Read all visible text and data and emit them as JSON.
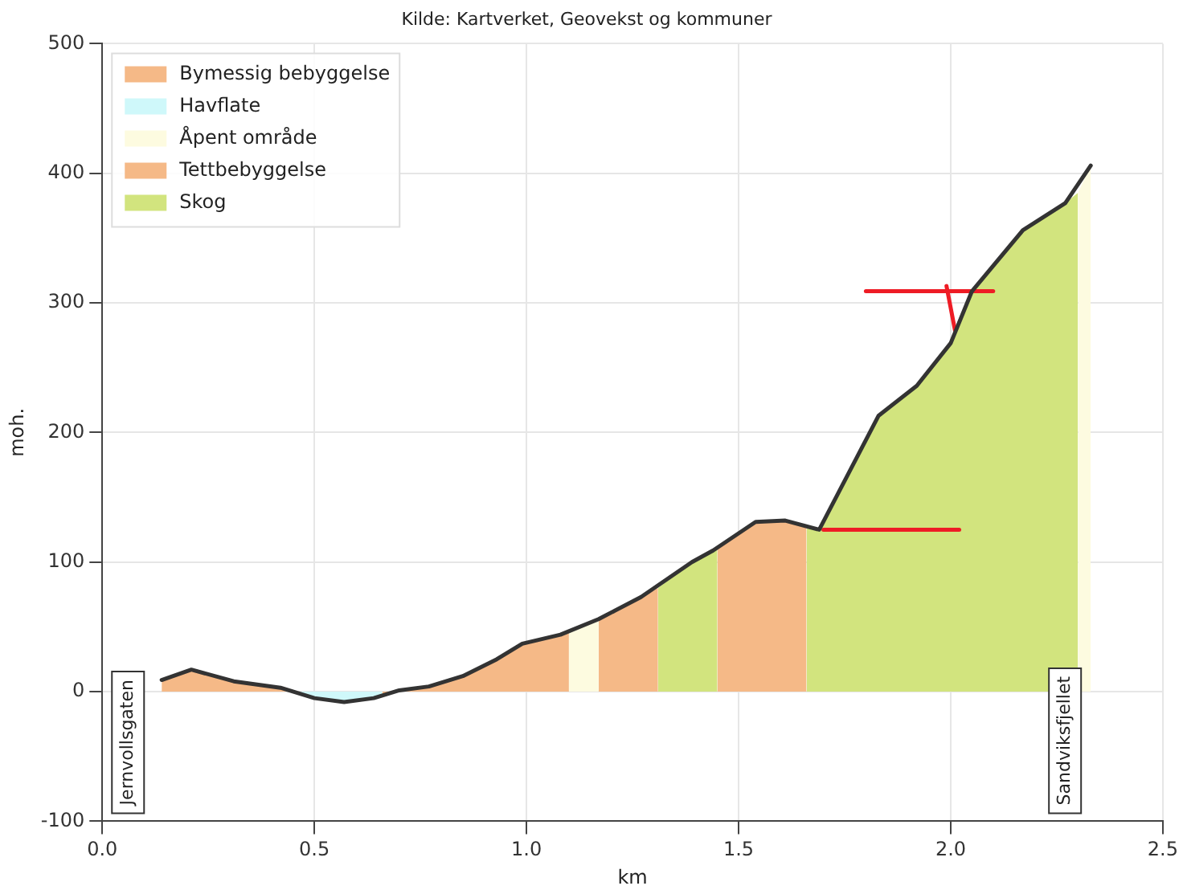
{
  "chart_data": {
    "type": "area",
    "title": "Kilde: Kartverket, Geovekst og kommuner",
    "xlabel": "km",
    "ylabel": "moh.",
    "xlim": [
      0,
      2.5
    ],
    "xticks": [
      {
        "value": 0,
        "label": "0.0"
      },
      {
        "value": 0.5,
        "label": "0.5"
      },
      {
        "value": 1,
        "label": "1.0"
      },
      {
        "value": 1.5,
        "label": "1.5"
      },
      {
        "value": 2,
        "label": "2.0"
      },
      {
        "value": 2.5,
        "label": "2.5"
      }
    ],
    "ylim": [
      -100,
      500
    ],
    "yticks": [
      -100,
      0,
      100,
      200,
      300,
      400,
      500
    ],
    "grid": true,
    "legend": "top left",
    "series": [
      {
        "name": "Bymessig bebyggelse",
        "color": "#f5b987",
        "x": [
          0.14,
          0.21,
          0.31,
          0.42,
          0.46
        ],
        "values": [
          9,
          17,
          8,
          3,
          0
        ]
      },
      {
        "name": "Havflate",
        "color": "#cff8fa",
        "x": [
          0.46,
          0.5,
          0.57,
          0.64,
          0.66
        ],
        "values": [
          0,
          -5,
          -8,
          -5,
          -3
        ]
      },
      {
        "name": "Åpent område",
        "color": "#fdfbe0",
        "x": [
          1.1,
          1.17,
          1.5,
          2.3,
          2.33
        ],
        "values": [
          46,
          56,
          null,
          385,
          406
        ]
      },
      {
        "name": "Tettbebyggelse",
        "color": "#f5b987",
        "x": [
          0.66,
          0.7,
          0.77,
          0.85,
          0.93,
          0.99,
          1.08,
          1.1,
          1.13,
          1.17,
          1.27,
          1.31,
          1.38,
          1.45,
          1.54,
          1.61,
          1.66
        ],
        "values": [
          -3,
          1,
          4,
          12,
          25,
          37,
          44,
          46,
          null,
          56,
          73,
          80,
          null,
          110,
          131,
          132,
          127
        ]
      },
      {
        "name": "Skog",
        "color": "#d2e47e",
        "x": [
          1.31,
          1.39,
          1.45,
          1.55,
          1.66,
          1.69,
          1.83,
          1.92,
          2.0,
          2.05,
          2.17,
          2.27,
          2.3
        ],
        "values": [
          80,
          100,
          110,
          null,
          127,
          125,
          213,
          236,
          269,
          309,
          356,
          377,
          385
        ]
      },
      {
        "type": "line",
        "color": "#333333",
        "x": [
          0.14,
          0.21,
          0.31,
          0.42,
          0.5,
          0.57,
          0.64,
          0.7,
          0.77,
          0.85,
          0.93,
          0.99,
          1.08,
          1.17,
          1.27,
          1.39,
          1.44,
          1.54,
          1.61,
          1.69,
          1.83,
          1.92,
          2.0,
          2.05,
          2.17,
          2.27,
          2.33
        ],
        "values": [
          9,
          17,
          8,
          3,
          -5,
          -8,
          -5,
          1,
          4,
          12,
          25,
          37,
          44,
          56,
          73,
          100,
          109,
          131,
          132,
          125,
          213,
          236,
          269,
          309,
          356,
          377,
          406
        ]
      },
      {
        "type": "line",
        "color": "#ee1c25",
        "x": [
          1.7,
          2.02
        ],
        "values": [
          125,
          125
        ]
      },
      {
        "type": "line",
        "color": "#ee1c25",
        "x": [
          1.8,
          2.1
        ],
        "values": [
          309,
          309
        ]
      },
      {
        "type": "line",
        "color": "#ee1c25",
        "x": [
          1.99,
          2.01
        ],
        "values": [
          313,
          279
        ]
      }
    ],
    "annotations": [
      "Jernvollsgaten",
      "Sandviksfjellet"
    ]
  }
}
